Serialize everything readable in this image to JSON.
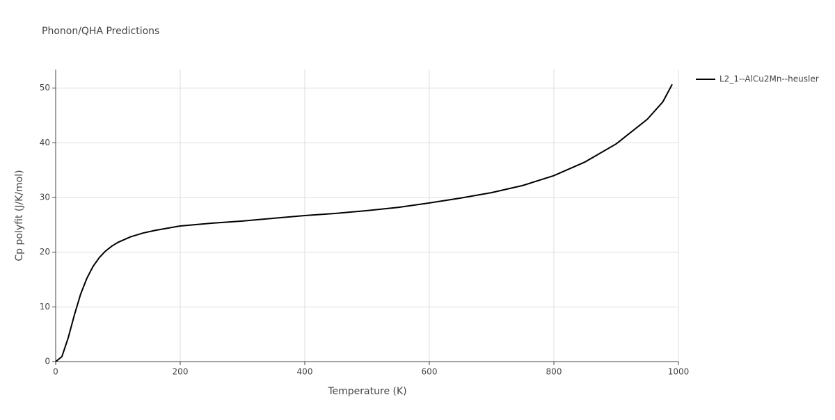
{
  "chart_data": {
    "type": "line",
    "title": "Phonon/QHA Predictions",
    "x_label": "Temperature (K)",
    "y_label": "Cp polyfit (J/K/mol)",
    "x": [
      0,
      10,
      20,
      30,
      40,
      50,
      60,
      70,
      80,
      90,
      100,
      120,
      140,
      160,
      180,
      200,
      250,
      300,
      350,
      400,
      450,
      500,
      550,
      600,
      650,
      700,
      750,
      800,
      850,
      900,
      950,
      975,
      990
    ],
    "series": [
      {
        "name": "L2_1--AlCu2Mn--heusler",
        "color": "#000000",
        "values": [
          0,
          0.9,
          4.3,
          8.5,
          12.3,
          15.2,
          17.4,
          19,
          20.2,
          21.1,
          21.8,
          22.8,
          23.5,
          24,
          24.4,
          24.8,
          25.3,
          25.7,
          26.2,
          26.7,
          27.1,
          27.6,
          28.2,
          29,
          29.9,
          30.9,
          32.2,
          34,
          36.5,
          39.8,
          44.3,
          47.5,
          50.7
        ]
      }
    ],
    "xlim": [
      0,
      1000
    ],
    "ylim": [
      0,
      53.4
    ],
    "xticks": [
      0,
      200,
      400,
      600,
      800,
      1000
    ],
    "yticks": [
      0,
      10,
      20,
      30,
      40,
      50
    ],
    "grid": true,
    "legend": "right"
  }
}
